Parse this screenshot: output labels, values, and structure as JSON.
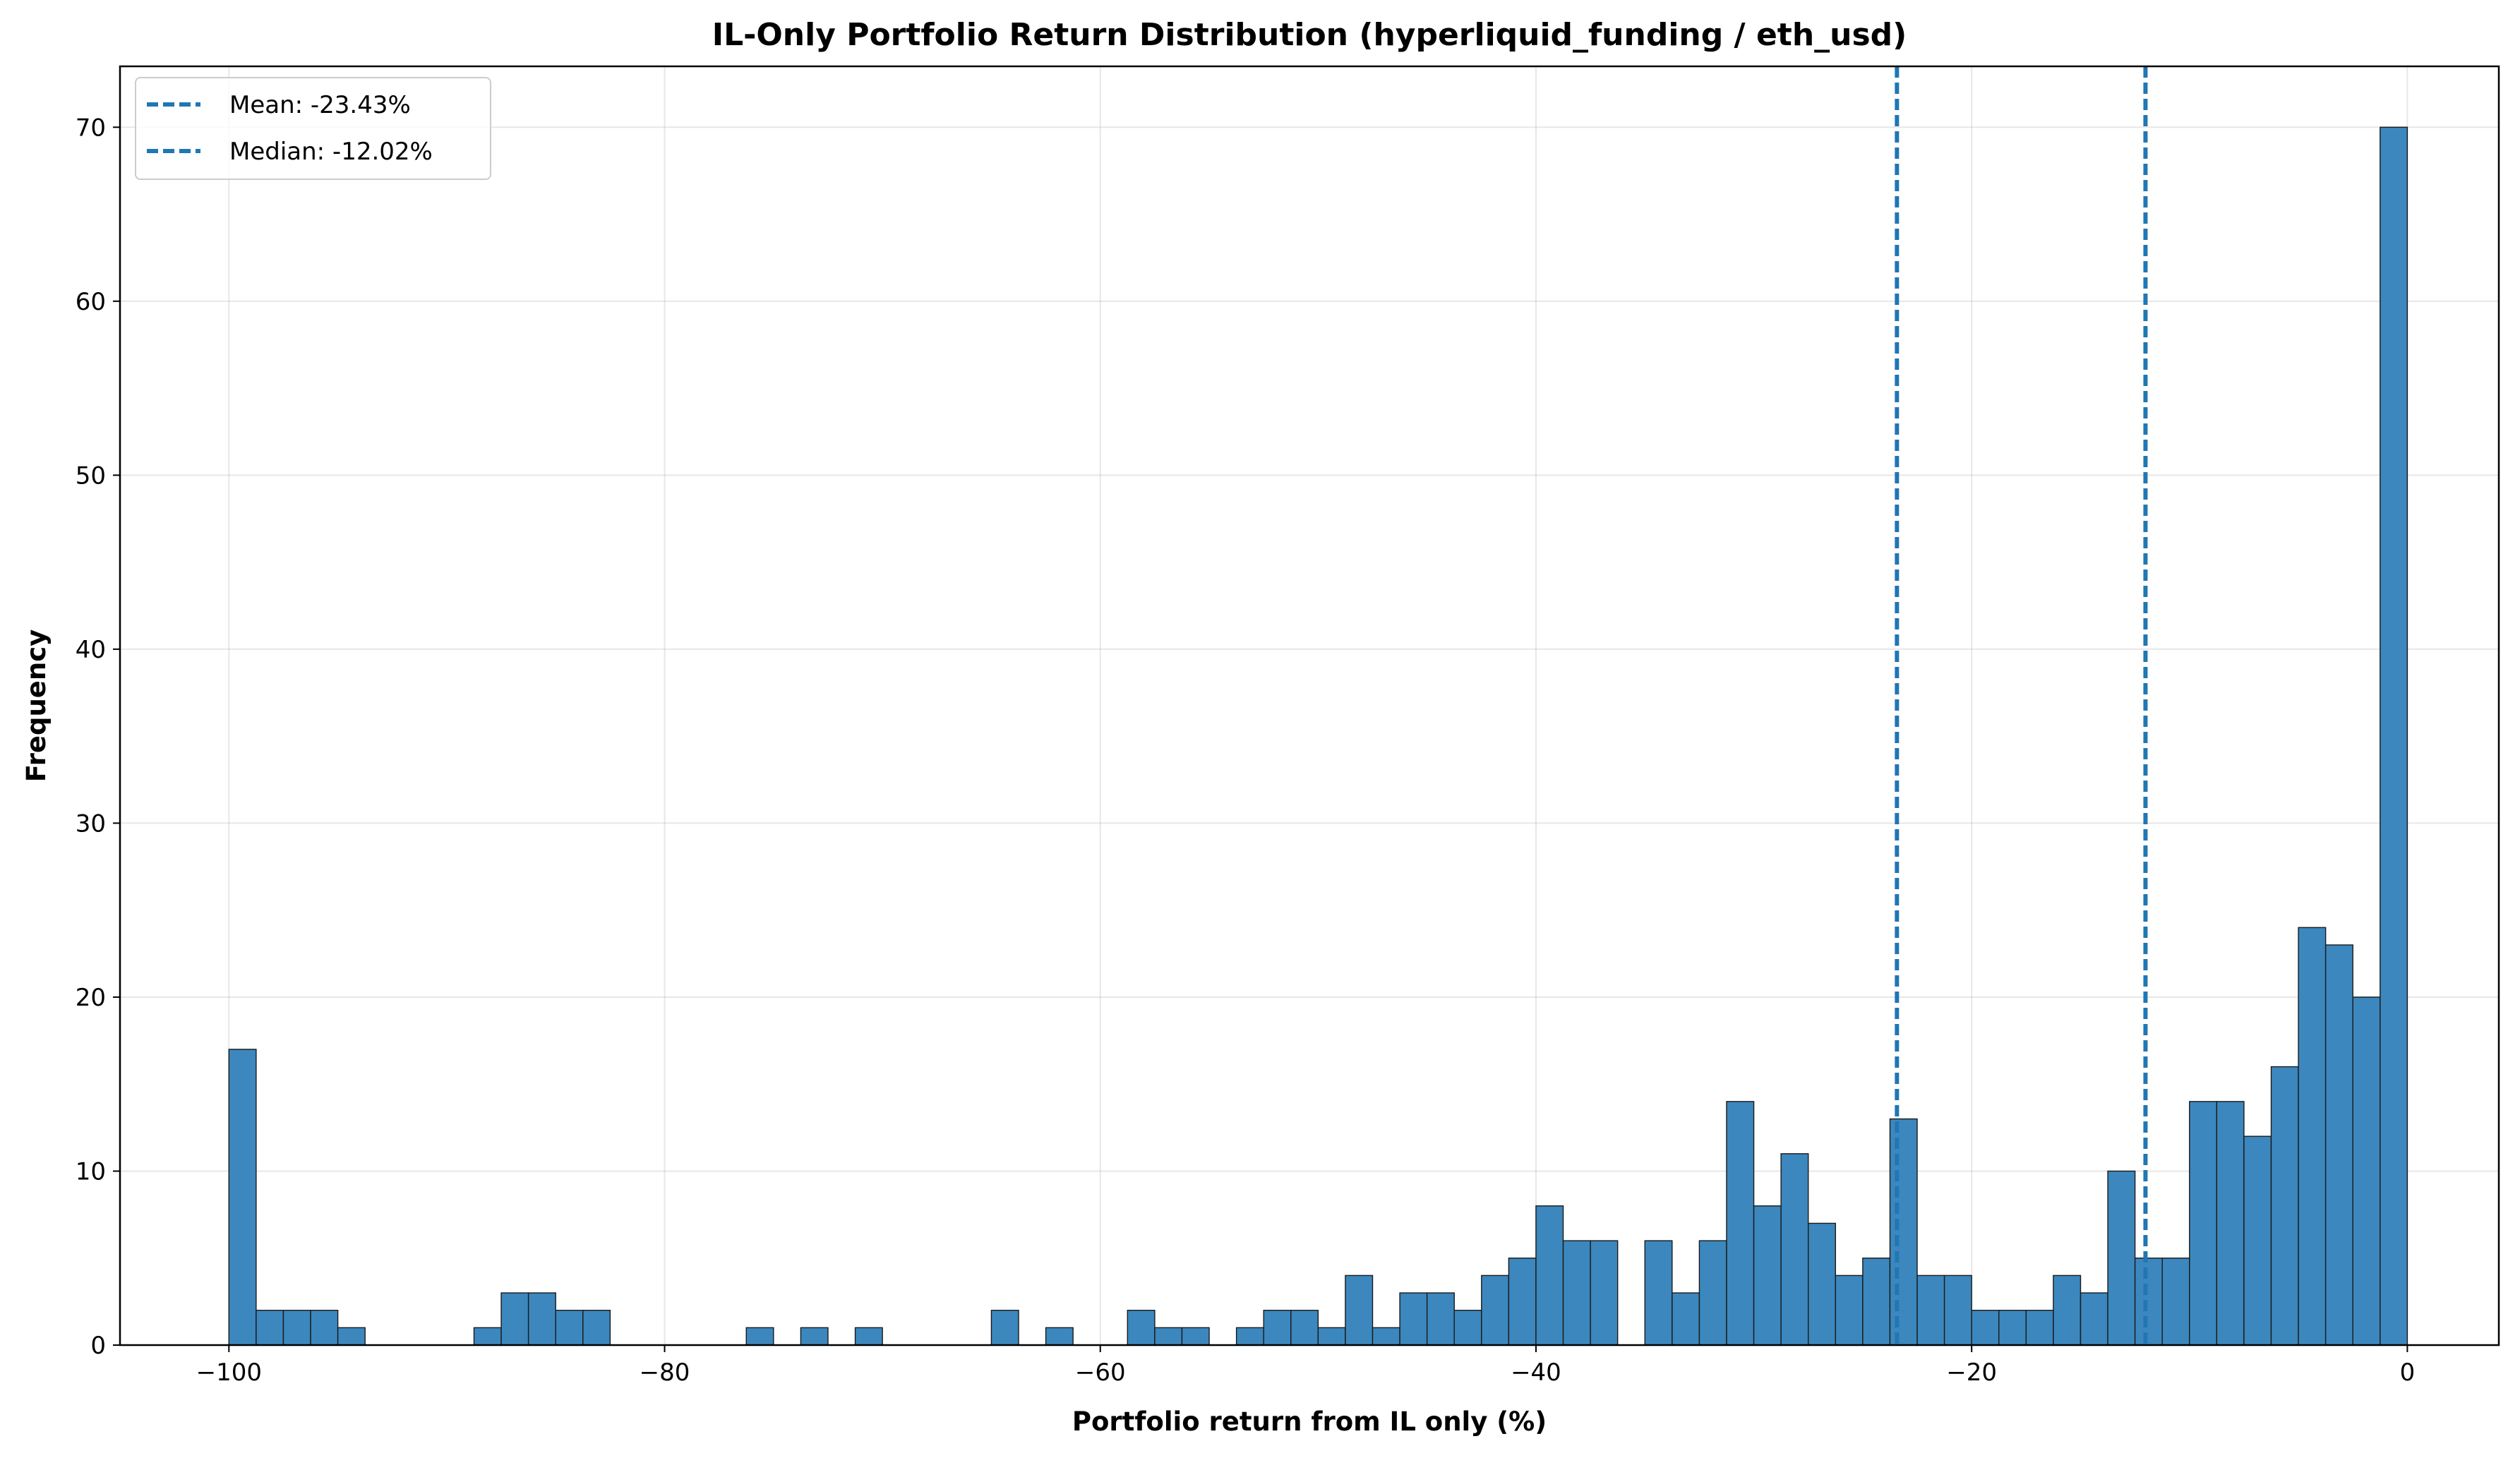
{
  "chart_data": {
    "type": "bar",
    "title": "IL-Only Portfolio Return Distribution (hyperliquid_funding / eth_usd)",
    "xlabel": "Portfolio return from IL only (%)",
    "ylabel": "Frequency",
    "xlim": [
      -105,
      4.2
    ],
    "ylim": [
      0,
      73.5
    ],
    "xticks": [
      -100,
      -80,
      -60,
      -40,
      -20,
      0
    ],
    "xtick_labels": [
      "−100",
      "−80",
      "−60",
      "−40",
      "−20",
      "0"
    ],
    "yticks": [
      0,
      10,
      20,
      30,
      40,
      50,
      60,
      70
    ],
    "ytick_labels": [
      "0",
      "10",
      "20",
      "30",
      "40",
      "50",
      "60",
      "70"
    ],
    "grid": true,
    "legend_position": "top-left",
    "bins": {
      "start": -100,
      "end": 0,
      "count": 80,
      "counts": [
        17,
        2,
        2,
        2,
        1,
        0,
        0,
        0,
        0,
        1,
        3,
        3,
        2,
        2,
        0,
        0,
        0,
        0,
        0,
        1,
        0,
        1,
        0,
        1,
        0,
        0,
        0,
        0,
        2,
        0,
        1,
        0,
        0,
        2,
        1,
        1,
        0,
        1,
        2,
        2,
        1,
        4,
        1,
        3,
        3,
        2,
        4,
        5,
        8,
        6,
        6,
        0,
        6,
        3,
        6,
        14,
        8,
        11,
        7,
        4,
        5,
        13,
        4,
        4,
        2,
        2,
        2,
        4,
        3,
        10,
        5,
        5,
        14,
        14,
        12,
        16,
        24,
        23,
        20,
        70
      ]
    },
    "bar_color": "#3c87bd",
    "vlines": [
      {
        "label": "Mean: -23.43%",
        "x": -23.43,
        "color": "#1f77b4"
      },
      {
        "label": "Median: -12.02%",
        "x": -12.02,
        "color": "#1f77b4"
      }
    ]
  }
}
